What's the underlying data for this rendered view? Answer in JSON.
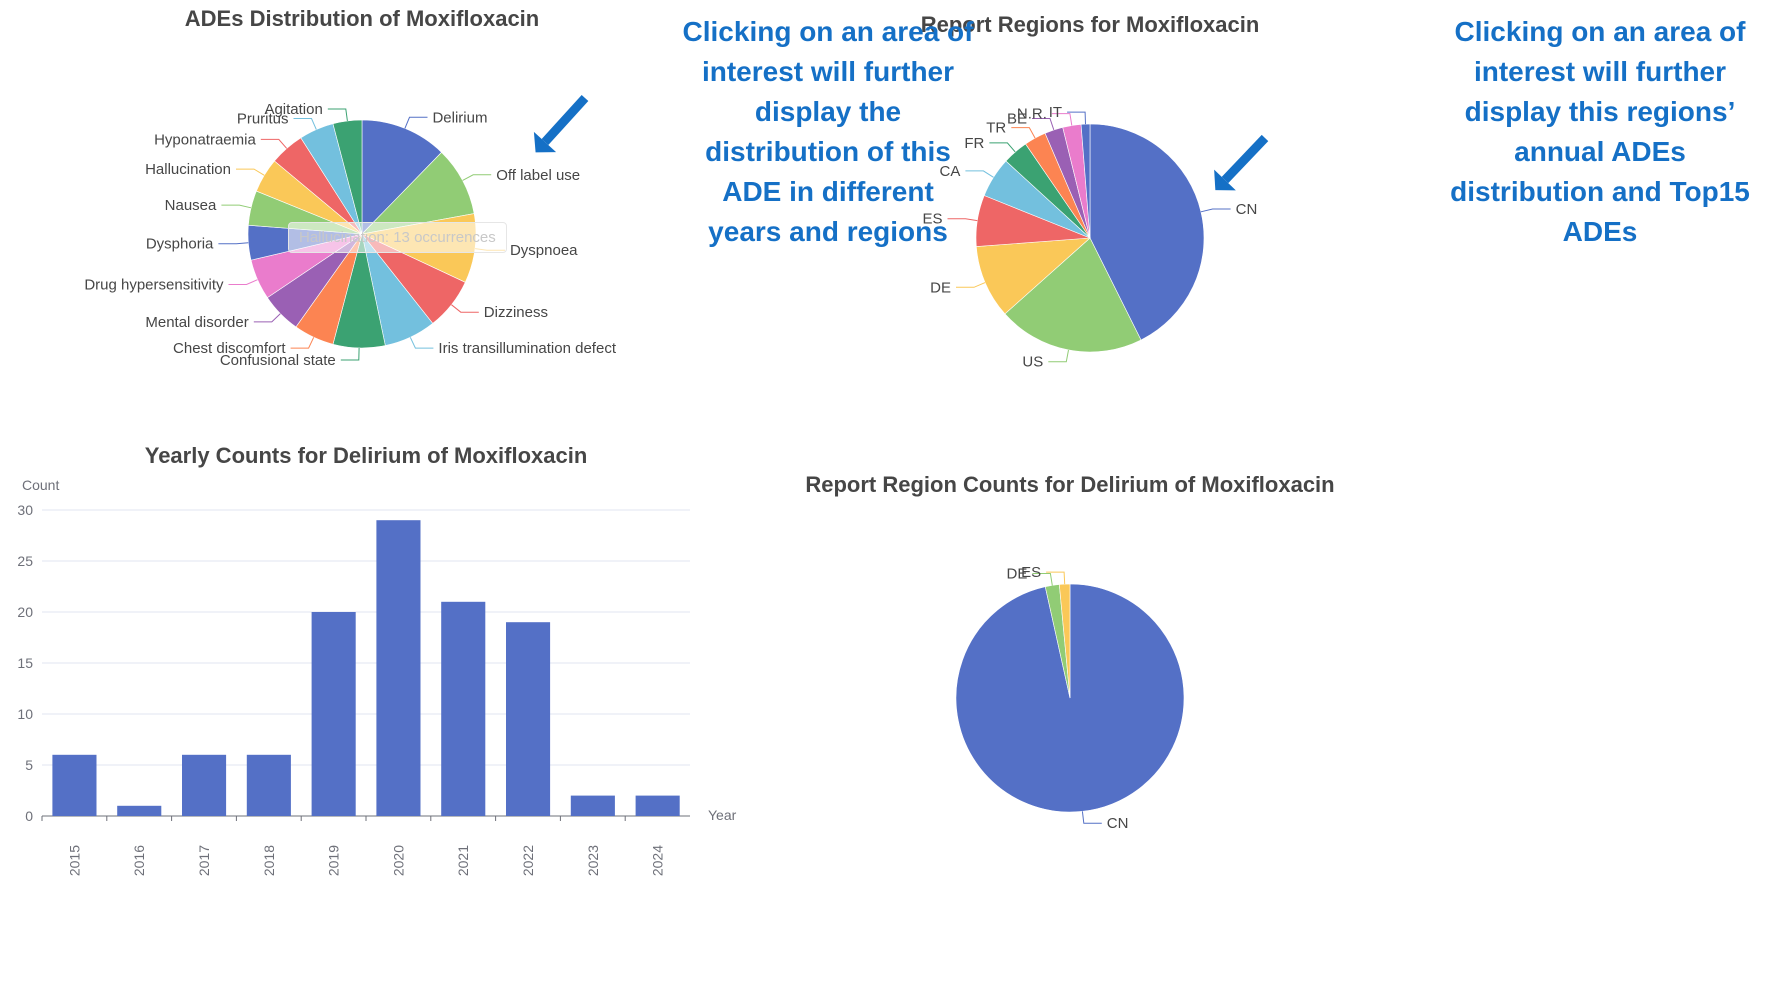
{
  "charts": [
    {
      "type": "pie",
      "title": "ADEs Distribution of Moxifloxacin",
      "labels": [
        "Delirium",
        "Off label use",
        "Dyspnoea",
        "Dizziness",
        "Iris transillumination defect",
        "Confusional state",
        "Chest discomfort",
        "Mental disorder",
        "Drug hypersensitivity",
        "Dysphoria",
        "Nausea",
        "Hallucination",
        "Hyponatraemia",
        "Pruritus",
        "Agitation"
      ],
      "values": [
        15,
        12,
        12,
        9,
        9,
        9,
        7,
        7,
        7,
        6,
        6,
        6,
        6,
        6,
        5
      ],
      "colors": [
        "#5470c6",
        "#91cc75",
        "#fac858",
        "#ee6666",
        "#73c0de",
        "#3ba272",
        "#fc8452",
        "#9a60b4",
        "#ea7ccc",
        "#5470c6",
        "#91cc75",
        "#fac858",
        "#ee6666",
        "#73c0de",
        "#3ba272"
      ],
      "tooltip": "Hallucination: 13 occurrences"
    },
    {
      "type": "pie",
      "title": "Report Regions for Moxifloxacin",
      "labels": [
        "CN",
        "US",
        "DE",
        "ES",
        "CA",
        "FR",
        "TR",
        "BE",
        "N.R.",
        "IT"
      ],
      "values": [
        41,
        20,
        10,
        7,
        5.5,
        3.5,
        3,
        2.5,
        2.5,
        1.2
      ],
      "colors": [
        "#5470c6",
        "#91cc75",
        "#fac858",
        "#ee6666",
        "#73c0de",
        "#3ba272",
        "#fc8452",
        "#9a60b4",
        "#ea7ccc",
        "#5470c6"
      ]
    },
    {
      "type": "bar",
      "title": "Yearly Counts for Delirium of Moxifloxacin",
      "categories": [
        "2015",
        "2016",
        "2017",
        "2018",
        "2019",
        "2020",
        "2021",
        "2022",
        "2023",
        "2024"
      ],
      "values": [
        6,
        1,
        6,
        6,
        20,
        29,
        21,
        19,
        2,
        2
      ],
      "ylabel": "Count",
      "xlabel": "Year",
      "ylim": [
        0,
        30
      ],
      "yticks": [
        "0",
        "5",
        "10",
        "15",
        "20",
        "25",
        "30"
      ],
      "color": "#5470c6"
    },
    {
      "type": "pie",
      "title": "Report Region Counts for Delirium of Moxifloxacin",
      "labels": [
        "CN",
        "DE",
        "ES"
      ],
      "values": [
        97,
        2,
        1.5
      ],
      "colors": [
        "#5470c6",
        "#91cc75",
        "#fac858"
      ]
    }
  ],
  "annotations": {
    "left": "Clicking on an area of\ninterest will further\ndisplay the\ndistribution of this\nADE in different\nyears and regions",
    "right": "Clicking on an area of\ninterest will further\ndisplay this regions’\nannual ADEs\ndistribution and Top15\nADEs"
  },
  "arrow_color": "#1570c6"
}
